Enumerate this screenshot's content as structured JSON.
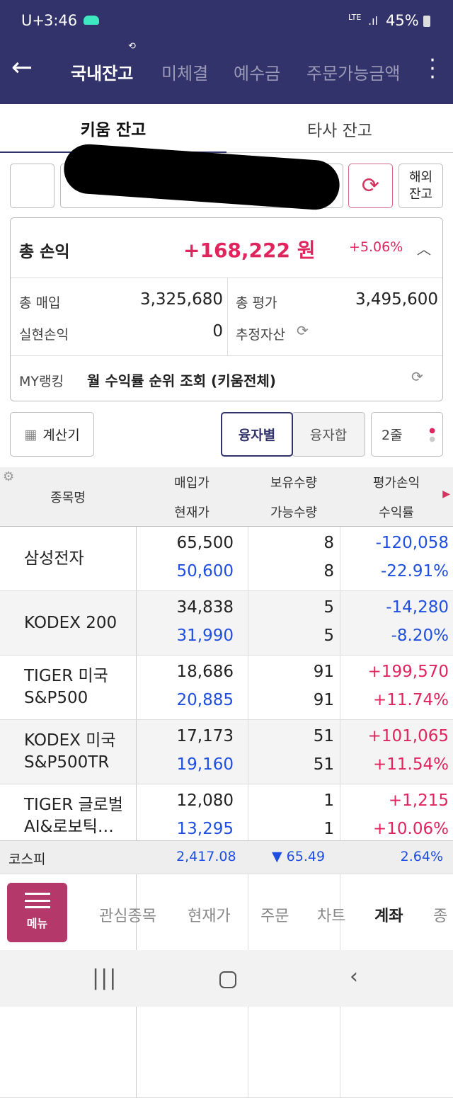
{
  "status_bar": {
    "carrier": "U+",
    "time": "3:46",
    "network": "LTE",
    "battery": "45%"
  },
  "header": {
    "tabs": [
      "국내잔고",
      "미체결",
      "예수금",
      "주문가능금액"
    ],
    "active": 0
  },
  "sub_tabs": {
    "items": [
      "키움 잔고",
      "타사 잔고"
    ],
    "active": 0
  },
  "account": {
    "refresh_icon": "refresh-icon",
    "overseas_label": "해외\n잔고"
  },
  "summary": {
    "total_pl_label": "총 손익",
    "total_pl": "+168,222 원",
    "total_pl_rate": "+5.06%",
    "purchase_label": "총 매입",
    "purchase": "3,325,680",
    "eval_label": "총 평가",
    "eval": "3,495,600",
    "realized_label": "실현손익",
    "realized": "0",
    "estimated_label": "추정자산",
    "ranking_label": "MY랭킹",
    "ranking_text": "월 수익률 순위 조회 (키움전체)"
  },
  "controls": {
    "calculator": "계산기",
    "by_loan": "융자별",
    "loan_sum": "융자합",
    "lines": "2줄"
  },
  "table": {
    "headers": {
      "name": "종목명",
      "buy_price": "매입가",
      "current_price": "현재가",
      "holding": "보유수량",
      "available": "가능수량",
      "pl": "평가손익",
      "rate": "수익률"
    },
    "rows": [
      {
        "name": "삼성전자",
        "buy": "65,500",
        "cur": "50,600",
        "hold": "8",
        "avail": "8",
        "pl": "-120,058",
        "rate": "-22.91%",
        "up": false
      },
      {
        "name": "KODEX 200",
        "buy": "34,838",
        "cur": "31,990",
        "hold": "5",
        "avail": "5",
        "pl": "-14,280",
        "rate": "-8.20%",
        "up": false
      },
      {
        "name": "TIGER 미국S&P500",
        "buy": "18,686",
        "cur": "20,885",
        "hold": "91",
        "avail": "91",
        "pl": "+199,570",
        "rate": "+11.74%",
        "up": true
      },
      {
        "name": "KODEX 미국S&P500TR",
        "buy": "17,173",
        "cur": "19,160",
        "hold": "51",
        "avail": "51",
        "pl": "+101,065",
        "rate": "+11.54%",
        "up": true
      },
      {
        "name": "TIGER 글로벌AI&로보틱…",
        "buy": "12,080",
        "cur": "13,295",
        "hold": "1",
        "avail": "1",
        "pl": "+1,215",
        "rate": "+10.06%",
        "up": true
      }
    ]
  },
  "ticker": {
    "name": "코스피",
    "value": "2,417.08",
    "change": "▼ 65.49",
    "rate": "2.64%"
  },
  "bottom_nav": {
    "menu": "메뉴",
    "items": [
      "관심종목",
      "현재가",
      "주문",
      "차트",
      "계좌",
      "종"
    ],
    "active": 4
  },
  "colors": {
    "header": "#33336b",
    "up": "#e0245e",
    "down": "#1f4fe0",
    "menu": "#b5386a"
  }
}
